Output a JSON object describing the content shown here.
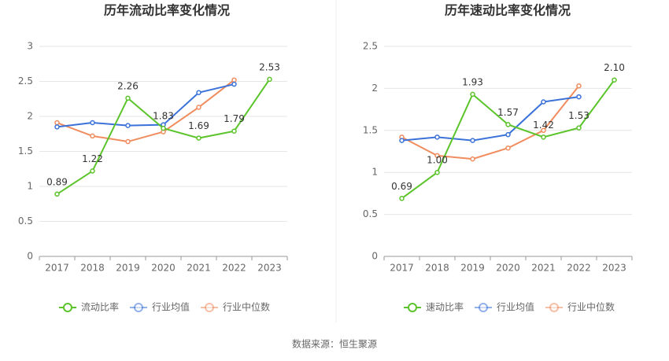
{
  "chart_data": [
    {
      "type": "line",
      "title": "历年流动比率变化情况",
      "categories": [
        "2017",
        "2018",
        "2019",
        "2020",
        "2021",
        "2022",
        "2023"
      ],
      "series": [
        {
          "name": "流动比率",
          "color": "#5cc42b",
          "values": [
            0.89,
            1.22,
            2.26,
            1.83,
            1.69,
            1.79,
            2.53
          ]
        },
        {
          "name": "行业均值",
          "color": "#3b72d9",
          "values": [
            1.85,
            1.91,
            1.87,
            1.88,
            2.34,
            2.46,
            null
          ]
        },
        {
          "name": "行业中位数",
          "color": "#f08c5e",
          "values": [
            1.91,
            1.72,
            1.64,
            1.78,
            2.13,
            2.52,
            null
          ]
        }
      ],
      "ylim": [
        0,
        3
      ],
      "yticks": [
        0,
        0.5,
        1,
        1.5,
        2,
        2.5,
        3
      ],
      "grid": true
    },
    {
      "type": "line",
      "title": "历年速动比率变化情况",
      "categories": [
        "2017",
        "2018",
        "2019",
        "2020",
        "2021",
        "2022",
        "2023"
      ],
      "series": [
        {
          "name": "速动比率",
          "color": "#5cc42b",
          "values": [
            0.69,
            1.0,
            1.93,
            1.57,
            1.42,
            1.53,
            2.1
          ],
          "value_labels": [
            "0.69",
            "1.00",
            "1.93",
            "1.57",
            "1.42",
            "1.53",
            "2.10"
          ]
        },
        {
          "name": "行业均值",
          "color": "#3b72d9",
          "values": [
            1.38,
            1.42,
            1.38,
            1.45,
            1.84,
            1.9,
            null
          ]
        },
        {
          "name": "行业中位数",
          "color": "#f08c5e",
          "values": [
            1.42,
            1.2,
            1.16,
            1.29,
            1.5,
            2.03,
            null
          ]
        }
      ],
      "ylim": [
        0,
        2.5
      ],
      "yticks": [
        0,
        0.5,
        1,
        1.5,
        2,
        2.5
      ],
      "grid": true
    }
  ],
  "source": "数据来源：恒生聚源"
}
